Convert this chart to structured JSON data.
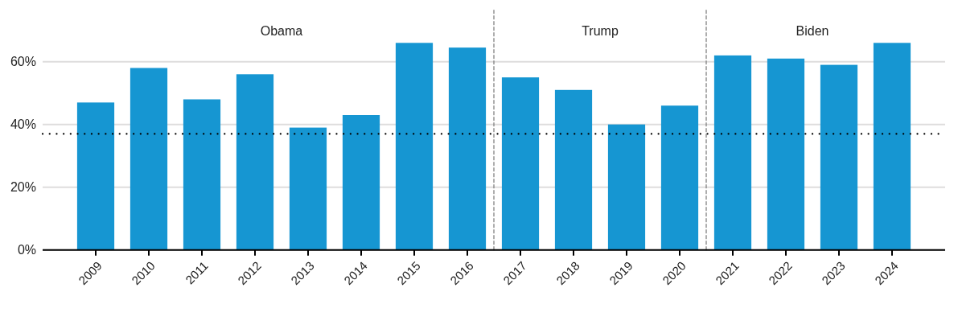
{
  "chart_data": {
    "type": "bar",
    "x": [
      2009,
      2010,
      2011,
      2012,
      2013,
      2014,
      2015,
      2016,
      2017,
      2018,
      2019,
      2020,
      2021,
      2022,
      2023,
      2024
    ],
    "values": [
      47,
      58,
      48,
      56,
      39,
      43,
      66,
      64.5,
      55,
      51,
      40,
      46,
      62,
      61,
      59,
      66
    ],
    "color": "#1696d2",
    "xlim": [
      2008,
      2025
    ],
    "xticks": [
      2009,
      2010,
      2011,
      2012,
      2013,
      2014,
      2015,
      2016,
      2017,
      2018,
      2019,
      2020,
      2021,
      2022,
      2023,
      2024
    ],
    "ylim": [
      0,
      77
    ],
    "yticks": [
      {
        "value": 0,
        "label": "0%"
      },
      {
        "value": 20,
        "label": "20%"
      },
      {
        "value": 40,
        "label": "40%"
      },
      {
        "value": 60,
        "label": "60%"
      }
    ],
    "grid": "y",
    "ref_lines": [
      {
        "axis": "y",
        "value": 37,
        "label": null,
        "color": "#000000",
        "line_style": "dotted"
      },
      {
        "axis": "x",
        "value": 2016.5,
        "label": null,
        "color": "#777777",
        "line_style": "dashed"
      },
      {
        "axis": "x",
        "value": 2020.5,
        "label": null,
        "color": "#777777",
        "line_style": "dashed"
      }
    ],
    "annotations": [
      "Obama",
      "Trump",
      "Biden"
    ]
  }
}
